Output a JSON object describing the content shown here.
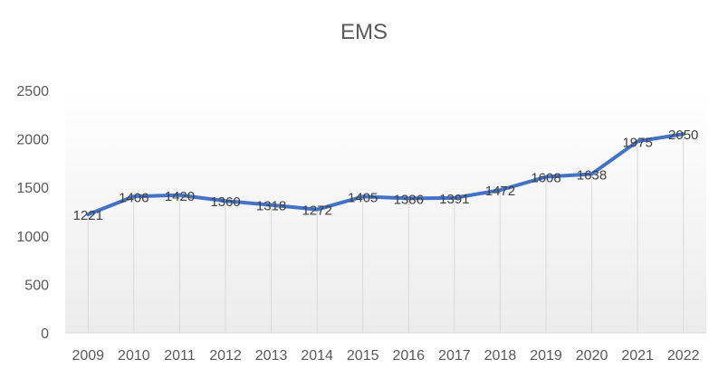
{
  "chart_data": {
    "type": "line",
    "title": "EMS",
    "xlabel": "",
    "ylabel": "",
    "categories": [
      "2009",
      "2010",
      "2011",
      "2012",
      "2013",
      "2014",
      "2015",
      "2016",
      "2017",
      "2018",
      "2019",
      "2020",
      "2021",
      "2022"
    ],
    "series": [
      {
        "values": [
          1221,
          1406,
          1420,
          1360,
          1318,
          1272,
          1405,
          1386,
          1391,
          1472,
          1608,
          1638,
          1975,
          2050
        ],
        "color": "#4472C4"
      }
    ],
    "ylim": [
      0,
      2500
    ],
    "yticks": [
      0,
      500,
      1000,
      1500,
      2000,
      2500
    ],
    "grid": "vertical drop lines",
    "data_labels": true,
    "legend": "none"
  }
}
